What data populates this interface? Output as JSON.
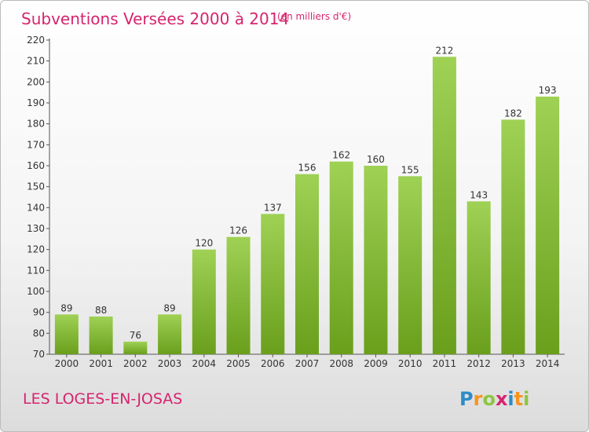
{
  "chart_data": {
    "type": "bar",
    "title": "Subventions Versées 2000 à 2014",
    "subtitle": "(en milliers d'€)",
    "categories": [
      "2000",
      "2001",
      "2002",
      "2003",
      "2004",
      "2005",
      "2006",
      "2007",
      "2008",
      "2009",
      "2010",
      "2011",
      "2012",
      "2013",
      "2014"
    ],
    "values": [
      89,
      88,
      76,
      89,
      120,
      126,
      137,
      156,
      162,
      160,
      155,
      212,
      143,
      182,
      193
    ],
    "ylim": [
      70,
      220
    ],
    "yticks": [
      70,
      80,
      90,
      100,
      110,
      120,
      130,
      140,
      150,
      160,
      170,
      180,
      190,
      200,
      210,
      220
    ],
    "grid": false,
    "bar_color": "#8cc63f"
  },
  "location": "LES LOGES-EN-JOSAS",
  "brand": "Proxiti"
}
